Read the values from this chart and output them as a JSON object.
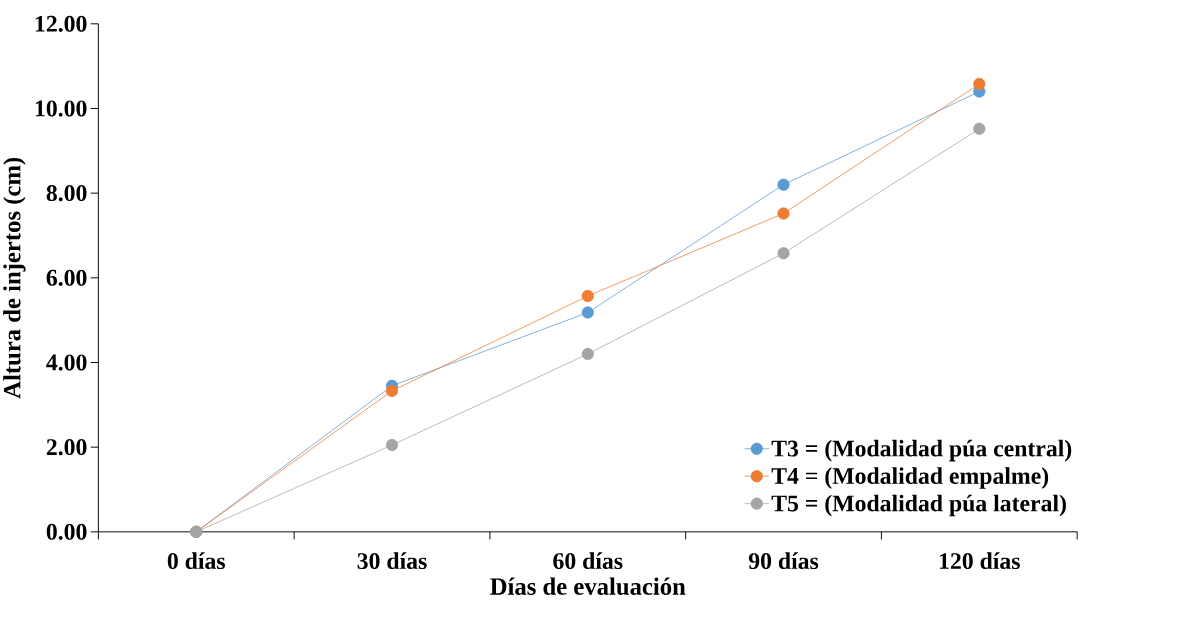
{
  "chart_data": {
    "type": "line",
    "xlabel": "Días de evaluación",
    "ylabel": "Altura de injertos (cm)",
    "categories": [
      "0 días",
      "30 días",
      "60 días",
      "90 días",
      "120 días"
    ],
    "series": [
      {
        "name": "T3 = (Modalidad púa central)",
        "color": "#5b9bd5",
        "values": [
          0,
          3.45,
          5.18,
          8.2,
          10.4
        ]
      },
      {
        "name": "T4 = (Modalidad empalme)",
        "color": "#ed7d31",
        "values": [
          0,
          3.33,
          5.57,
          7.52,
          10.58
        ]
      },
      {
        "name": "T5 = (Modalidad púa lateral)",
        "color": "#a5a5a5",
        "values": [
          0,
          2.05,
          4.2,
          6.58,
          9.52
        ]
      }
    ],
    "ylim": [
      0,
      12
    ],
    "yticks": [
      {
        "value": 0,
        "label": "0.00"
      },
      {
        "value": 2,
        "label": "2.00"
      },
      {
        "value": 4,
        "label": "4.00"
      },
      {
        "value": 6,
        "label": "6.00"
      },
      {
        "value": 8,
        "label": "8.00"
      },
      {
        "value": 10,
        "label": "10.00"
      },
      {
        "value": 12,
        "label": "12.00"
      }
    ],
    "legend": "bottom right",
    "marker": "circle",
    "line_style": "solid"
  }
}
